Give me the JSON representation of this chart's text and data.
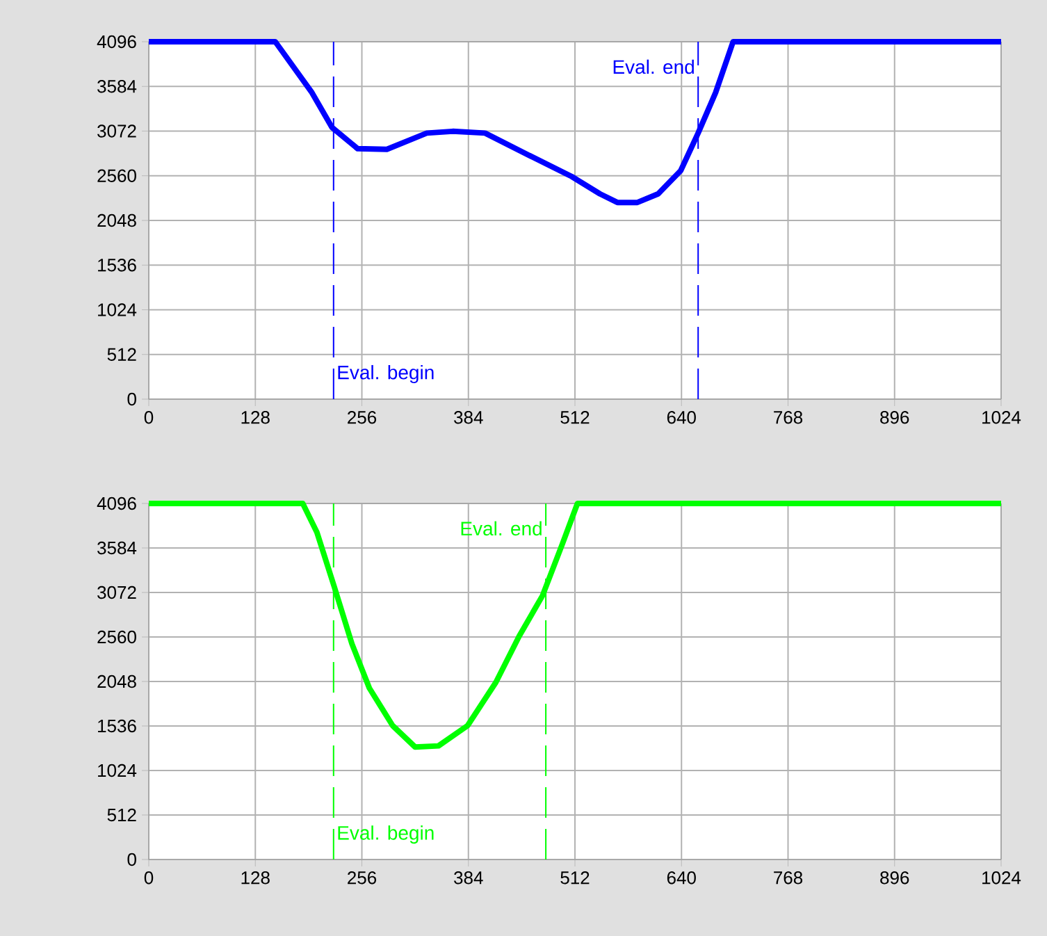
{
  "chart_data": [
    {
      "type": "line",
      "x": [
        0,
        152,
        196,
        220,
        251,
        286,
        334,
        365,
        404,
        459,
        508,
        542,
        563,
        587,
        612,
        639,
        660,
        681,
        702,
        1024
      ],
      "series": [
        {
          "color": "#0000ff",
          "values": [
            4096,
            4096,
            3513,
            3115,
            2870,
            2863,
            3049,
            3069,
            3049,
            2784,
            2552,
            2353,
            2254,
            2254,
            2353,
            2618,
            3049,
            3513,
            4096,
            4096
          ]
        }
      ],
      "xlim": [
        0,
        1024
      ],
      "ylim": [
        0,
        4096
      ],
      "xticks": [
        0,
        128,
        256,
        384,
        512,
        640,
        768,
        896,
        1024
      ],
      "yticks": [
        0,
        512,
        1024,
        1536,
        2048,
        2560,
        3072,
        3584,
        4096
      ],
      "grid": true,
      "ref_lines": [
        {
          "axis": "x",
          "value": 222,
          "label": "Eval. begin",
          "color": "#0000ff",
          "line_style": "dashed"
        },
        {
          "axis": "x",
          "value": 660,
          "label": "Eval. end",
          "color": "#0000ff",
          "line_style": "dashed"
        }
      ]
    },
    {
      "type": "line",
      "x": [
        0,
        185,
        202,
        223,
        244,
        265,
        293,
        320,
        348,
        383,
        417,
        445,
        473,
        497,
        515,
        1024
      ],
      "series": [
        {
          "color": "#00ff00",
          "values": [
            4096,
            4096,
            3764,
            3133,
            2483,
            1972,
            1540,
            1294,
            1307,
            1540,
            2038,
            2570,
            3035,
            3633,
            4096,
            4096
          ]
        }
      ],
      "xlim": [
        0,
        1024
      ],
      "ylim": [
        0,
        4096
      ],
      "xticks": [
        0,
        128,
        256,
        384,
        512,
        640,
        768,
        896,
        1024
      ],
      "yticks": [
        0,
        512,
        1024,
        1536,
        2048,
        2560,
        3072,
        3584,
        4096
      ],
      "grid": true,
      "ref_lines": [
        {
          "axis": "x",
          "value": 222,
          "label": "Eval. begin",
          "color": "#00ff00",
          "line_style": "dashed"
        },
        {
          "axis": "x",
          "value": 477,
          "label": "Eval. end",
          "color": "#00ff00",
          "line_style": "dashed"
        }
      ]
    }
  ]
}
